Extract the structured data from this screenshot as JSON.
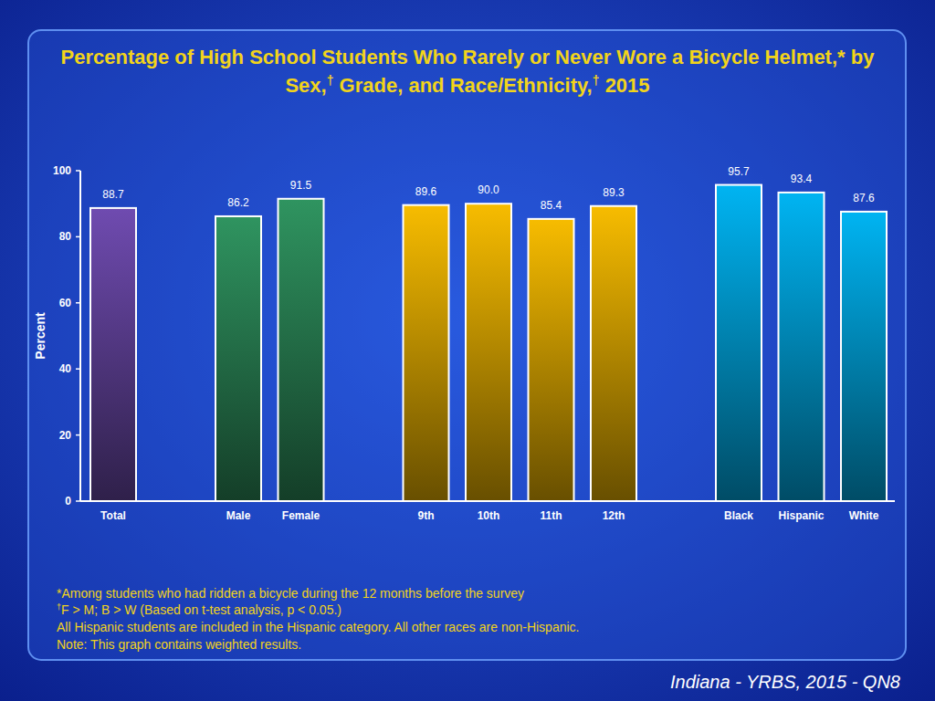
{
  "chart_data": {
    "type": "bar",
    "title": "Percentage of High School Students Who Rarely or Never Wore a Bicycle Helmet,* by Sex,† Grade, and Race/Ethnicity,† 2015",
    "y_label": "Percent",
    "categories": [
      "Total",
      "Male",
      "Female",
      "9th",
      "10th",
      "11th",
      "12th",
      "Black",
      "Hispanic",
      "White"
    ],
    "values": [
      88.7,
      86.2,
      91.5,
      89.6,
      90.0,
      85.4,
      89.3,
      95.7,
      93.4,
      87.6
    ],
    "value_labels": [
      "88.7",
      "86.2",
      "91.5",
      "89.6",
      "90.0",
      "85.4",
      "89.3",
      "95.7",
      "93.4",
      "87.6"
    ],
    "colors": [
      "#6f4bb0",
      "#2f9460",
      "#2f9460",
      "#f7bc00",
      "#f7bc00",
      "#f7bc00",
      "#f7bc00",
      "#00b4f2",
      "#00b4f2",
      "#00b4f2"
    ],
    "ylim": [
      0,
      100
    ],
    "yticks": [
      0,
      20,
      40,
      60,
      80,
      100
    ],
    "grid": false,
    "data_labels": true,
    "annotations": [
      "*Among students who had ridden a bicycle during the 12 months before the survey",
      "†F > M; B > W (Based on t-test analysis, p < 0.05.)",
      "All Hispanic students are included in the Hispanic category.  All other races are non-Hispanic.",
      "Note: This graph contains weighted results."
    ],
    "source": "Indiana - YRBS, 2015 - QN8"
  }
}
